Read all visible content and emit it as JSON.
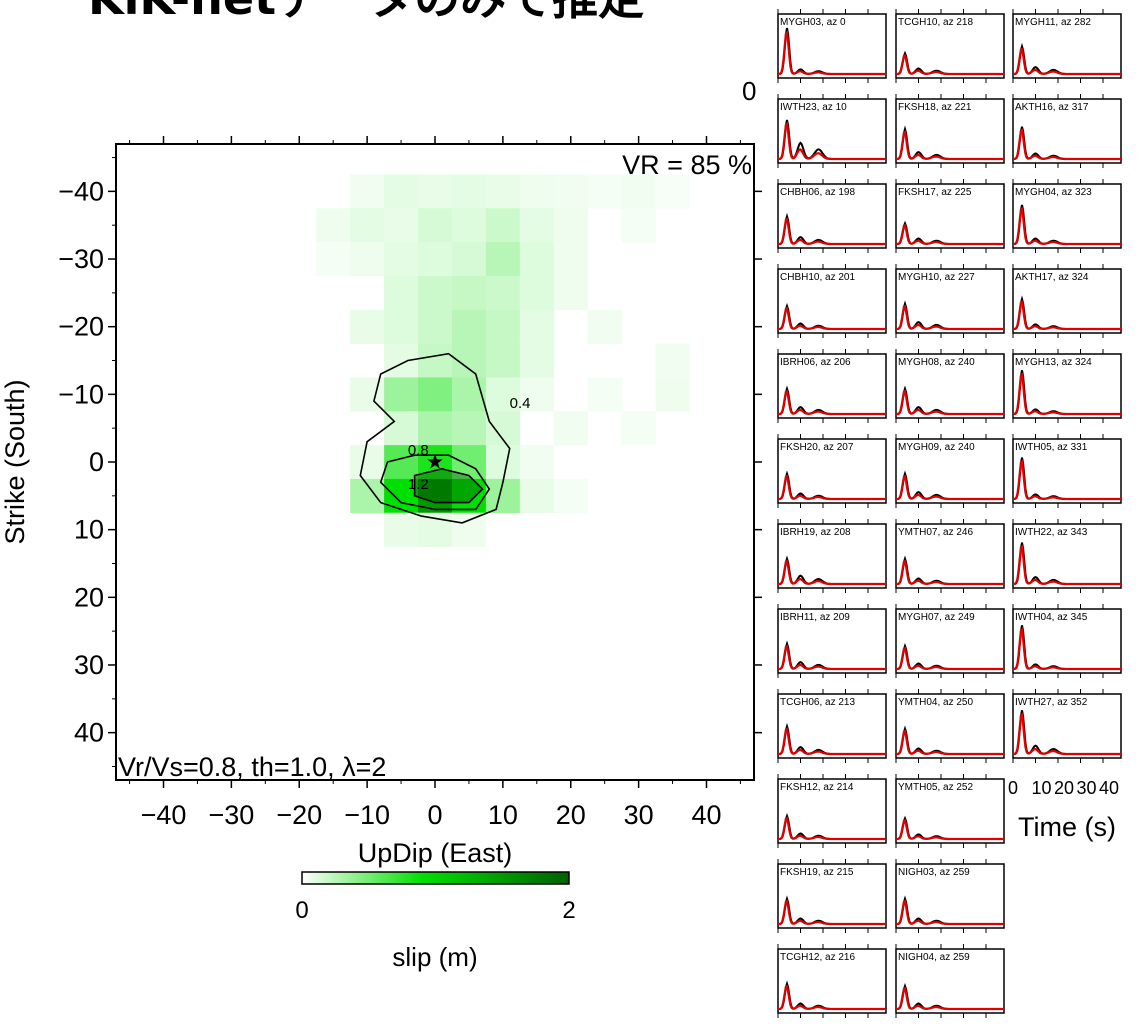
{
  "title": "KiK-netデータのみで推定",
  "side_zero_label": "0",
  "chart_data": [
    {
      "type": "heatmap",
      "xlabel": "UpDip (East)",
      "ylabel": "Strike (South)",
      "xticks": [
        -40,
        -30,
        -20,
        -10,
        0,
        10,
        20,
        30,
        40
      ],
      "yticks": [
        -40,
        -30,
        -20,
        -10,
        0,
        10,
        20,
        30,
        40
      ],
      "xlim": [
        -47,
        47
      ],
      "ylim": [
        -47,
        47
      ],
      "y_axis_inverted": true,
      "vr_label": "VR = 85 %",
      "params_label": "Vr/Vs=0.8, th=1.0, λ=2",
      "contour_levels": [
        0.4,
        0.8,
        1.2
      ],
      "contour_labels": [
        "0.4",
        "0.8",
        "1.2"
      ],
      "hypocenter": {
        "x": 0,
        "y": 0,
        "symbol": "star"
      },
      "colorbar": {
        "label": "slip (m)",
        "min": 0,
        "max": 2,
        "min_label": "0",
        "max_label": "2",
        "colors": [
          "#ffffff",
          "#00e000",
          "#006000"
        ]
      },
      "cells": [
        {
          "x": -10,
          "y": -40,
          "v": 0.05
        },
        {
          "x": -5,
          "y": -40,
          "v": 0.1
        },
        {
          "x": 0,
          "y": -40,
          "v": 0.08
        },
        {
          "x": 5,
          "y": -40,
          "v": 0.1
        },
        {
          "x": 10,
          "y": -40,
          "v": 0.08
        },
        {
          "x": 15,
          "y": -40,
          "v": 0.06
        },
        {
          "x": 20,
          "y": -40,
          "v": 0.05
        },
        {
          "x": 25,
          "y": -40,
          "v": 0.04
        },
        {
          "x": 30,
          "y": -40,
          "v": 0.05
        },
        {
          "x": 35,
          "y": -40,
          "v": 0.03
        },
        {
          "x": -15,
          "y": -35,
          "v": 0.06
        },
        {
          "x": -10,
          "y": -35,
          "v": 0.1
        },
        {
          "x": -5,
          "y": -35,
          "v": 0.08
        },
        {
          "x": 0,
          "y": -35,
          "v": 0.15
        },
        {
          "x": 5,
          "y": -35,
          "v": 0.12
        },
        {
          "x": 10,
          "y": -35,
          "v": 0.18
        },
        {
          "x": 15,
          "y": -35,
          "v": 0.1
        },
        {
          "x": 20,
          "y": -35,
          "v": 0.06
        },
        {
          "x": 30,
          "y": -35,
          "v": 0.04
        },
        {
          "x": -15,
          "y": -30,
          "v": 0.04
        },
        {
          "x": -10,
          "y": -30,
          "v": 0.06
        },
        {
          "x": -5,
          "y": -30,
          "v": 0.1
        },
        {
          "x": 0,
          "y": -30,
          "v": 0.12
        },
        {
          "x": 5,
          "y": -30,
          "v": 0.15
        },
        {
          "x": 10,
          "y": -30,
          "v": 0.25
        },
        {
          "x": 15,
          "y": -30,
          "v": 0.12
        },
        {
          "x": 20,
          "y": -30,
          "v": 0.06
        },
        {
          "x": -5,
          "y": -25,
          "v": 0.12
        },
        {
          "x": 0,
          "y": -25,
          "v": 0.18
        },
        {
          "x": 5,
          "y": -25,
          "v": 0.2
        },
        {
          "x": 10,
          "y": -25,
          "v": 0.18
        },
        {
          "x": 15,
          "y": -25,
          "v": 0.12
        },
        {
          "x": 20,
          "y": -25,
          "v": 0.06
        },
        {
          "x": -10,
          "y": -20,
          "v": 0.08
        },
        {
          "x": -5,
          "y": -20,
          "v": 0.12
        },
        {
          "x": 0,
          "y": -20,
          "v": 0.18
        },
        {
          "x": 5,
          "y": -20,
          "v": 0.25
        },
        {
          "x": 10,
          "y": -20,
          "v": 0.2
        },
        {
          "x": 15,
          "y": -20,
          "v": 0.1
        },
        {
          "x": 25,
          "y": -20,
          "v": 0.05
        },
        {
          "x": -5,
          "y": -15,
          "v": 0.1
        },
        {
          "x": 0,
          "y": -15,
          "v": 0.2
        },
        {
          "x": 5,
          "y": -15,
          "v": 0.25
        },
        {
          "x": 10,
          "y": -15,
          "v": 0.2
        },
        {
          "x": 15,
          "y": -15,
          "v": 0.1
        },
        {
          "x": 35,
          "y": -15,
          "v": 0.05
        },
        {
          "x": -10,
          "y": -10,
          "v": 0.08
        },
        {
          "x": -5,
          "y": -10,
          "v": 0.35
        },
        {
          "x": 0,
          "y": -10,
          "v": 0.45
        },
        {
          "x": 5,
          "y": -10,
          "v": 0.3
        },
        {
          "x": 10,
          "y": -10,
          "v": 0.12
        },
        {
          "x": 15,
          "y": -10,
          "v": 0.06
        },
        {
          "x": 25,
          "y": -10,
          "v": 0.04
        },
        {
          "x": 35,
          "y": -10,
          "v": 0.06
        },
        {
          "x": -5,
          "y": -5,
          "v": 0.15
        },
        {
          "x": 0,
          "y": -5,
          "v": 0.3
        },
        {
          "x": 5,
          "y": -5,
          "v": 0.25
        },
        {
          "x": 10,
          "y": -5,
          "v": 0.15
        },
        {
          "x": 20,
          "y": -5,
          "v": 0.05
        },
        {
          "x": 30,
          "y": -5,
          "v": 0.04
        },
        {
          "x": -10,
          "y": 0,
          "v": 0.08
        },
        {
          "x": -5,
          "y": 0,
          "v": 0.6
        },
        {
          "x": 0,
          "y": 0,
          "v": 0.8
        },
        {
          "x": 5,
          "y": 0,
          "v": 0.5
        },
        {
          "x": 10,
          "y": 0,
          "v": 0.12
        },
        {
          "x": 15,
          "y": 0,
          "v": 0.05
        },
        {
          "x": -10,
          "y": 5,
          "v": 0.3
        },
        {
          "x": -5,
          "y": 5,
          "v": 0.9
        },
        {
          "x": 0,
          "y": 5,
          "v": 1.5
        },
        {
          "x": 5,
          "y": 5,
          "v": 0.9
        },
        {
          "x": 10,
          "y": 5,
          "v": 0.35
        },
        {
          "x": 15,
          "y": 5,
          "v": 0.08
        },
        {
          "x": 20,
          "y": 5,
          "v": 0.04
        },
        {
          "x": -5,
          "y": 10,
          "v": 0.08
        },
        {
          "x": 0,
          "y": 10,
          "v": 0.1
        },
        {
          "x": 5,
          "y": 10,
          "v": 0.06
        }
      ]
    },
    {
      "type": "line",
      "xlabel": "Time (s)",
      "xtick_labels": [
        "0",
        "10",
        "20",
        "30",
        "40"
      ],
      "xticks": [
        0,
        10,
        20,
        30,
        40
      ],
      "xlim": [
        0,
        48
      ],
      "ylim": [
        0,
        1
      ],
      "series_colors": {
        "observed": "#000000",
        "synthetic": "#e00000"
      },
      "stations": [
        {
          "label": "MYGH03, az 0",
          "col": 0,
          "row": 0,
          "peak": 1.0,
          "tail": 0.1
        },
        {
          "label": "IWTH23, az 10",
          "col": 0,
          "row": 1,
          "peak": 0.85,
          "tail": 0.35
        },
        {
          "label": "CHBH06, az 198",
          "col": 0,
          "row": 2,
          "peak": 0.6,
          "tail": 0.15
        },
        {
          "label": "CHBH10, az 201",
          "col": 0,
          "row": 3,
          "peak": 0.5,
          "tail": 0.12
        },
        {
          "label": "IBRH06, az 206",
          "col": 0,
          "row": 4,
          "peak": 0.55,
          "tail": 0.15
        },
        {
          "label": "FKSH20, az 207",
          "col": 0,
          "row": 5,
          "peak": 0.55,
          "tail": 0.12
        },
        {
          "label": "IBRH19, az 208",
          "col": 0,
          "row": 6,
          "peak": 0.55,
          "tail": 0.18
        },
        {
          "label": "IBRH11, az 209",
          "col": 0,
          "row": 7,
          "peak": 0.55,
          "tail": 0.15
        },
        {
          "label": "TCGH06, az 213",
          "col": 0,
          "row": 8,
          "peak": 0.6,
          "tail": 0.15
        },
        {
          "label": "FKSH12, az 214",
          "col": 0,
          "row": 9,
          "peak": 0.5,
          "tail": 0.12
        },
        {
          "label": "FKSH19, az 215",
          "col": 0,
          "row": 10,
          "peak": 0.55,
          "tail": 0.12
        },
        {
          "label": "TCGH12, az 216",
          "col": 0,
          "row": 11,
          "peak": 0.55,
          "tail": 0.12
        },
        {
          "label": "TCGH10, az 218",
          "col": 1,
          "row": 0,
          "peak": 0.45,
          "tail": 0.12
        },
        {
          "label": "FKSH18, az 221",
          "col": 1,
          "row": 1,
          "peak": 0.65,
          "tail": 0.15
        },
        {
          "label": "FKSH17, az 225",
          "col": 1,
          "row": 2,
          "peak": 0.45,
          "tail": 0.12
        },
        {
          "label": "MYGH10, az 227",
          "col": 1,
          "row": 3,
          "peak": 0.55,
          "tail": 0.15
        },
        {
          "label": "MYGH08, az 240",
          "col": 1,
          "row": 4,
          "peak": 0.55,
          "tail": 0.15
        },
        {
          "label": "MYGH09, az 240",
          "col": 1,
          "row": 5,
          "peak": 0.55,
          "tail": 0.15
        },
        {
          "label": "YMTH07, az 246",
          "col": 1,
          "row": 6,
          "peak": 0.55,
          "tail": 0.12
        },
        {
          "label": "MYGH07, az 249",
          "col": 1,
          "row": 7,
          "peak": 0.5,
          "tail": 0.12
        },
        {
          "label": "YMTH04, az 250",
          "col": 1,
          "row": 8,
          "peak": 0.55,
          "tail": 0.12
        },
        {
          "label": "YMTH05, az 252",
          "col": 1,
          "row": 9,
          "peak": 0.45,
          "tail": 0.1
        },
        {
          "label": "NIGH03, az 259",
          "col": 1,
          "row": 10,
          "peak": 0.55,
          "tail": 0.12
        },
        {
          "label": "NIGH04, az 259",
          "col": 1,
          "row": 11,
          "peak": 0.5,
          "tail": 0.12
        },
        {
          "label": "MYGH11, az 282",
          "col": 2,
          "row": 0,
          "peak": 0.6,
          "tail": 0.15
        },
        {
          "label": "AKTH16, az 317",
          "col": 2,
          "row": 1,
          "peak": 0.7,
          "tail": 0.12
        },
        {
          "label": "MYGH04, az 323",
          "col": 2,
          "row": 2,
          "peak": 0.85,
          "tail": 0.12
        },
        {
          "label": "AKTH17, az 324",
          "col": 2,
          "row": 3,
          "peak": 0.65,
          "tail": 0.1
        },
        {
          "label": "MYGH13, az 324",
          "col": 2,
          "row": 4,
          "peak": 0.95,
          "tail": 0.1
        },
        {
          "label": "IWTH05, az 331",
          "col": 2,
          "row": 5,
          "peak": 0.9,
          "tail": 0.1
        },
        {
          "label": "IWTH22, az 343",
          "col": 2,
          "row": 6,
          "peak": 0.9,
          "tail": 0.15
        },
        {
          "label": "IWTH04, az 345",
          "col": 2,
          "row": 7,
          "peak": 0.95,
          "tail": 0.1
        },
        {
          "label": "IWTH27, az 352",
          "col": 2,
          "row": 8,
          "peak": 0.95,
          "tail": 0.18
        }
      ]
    }
  ]
}
